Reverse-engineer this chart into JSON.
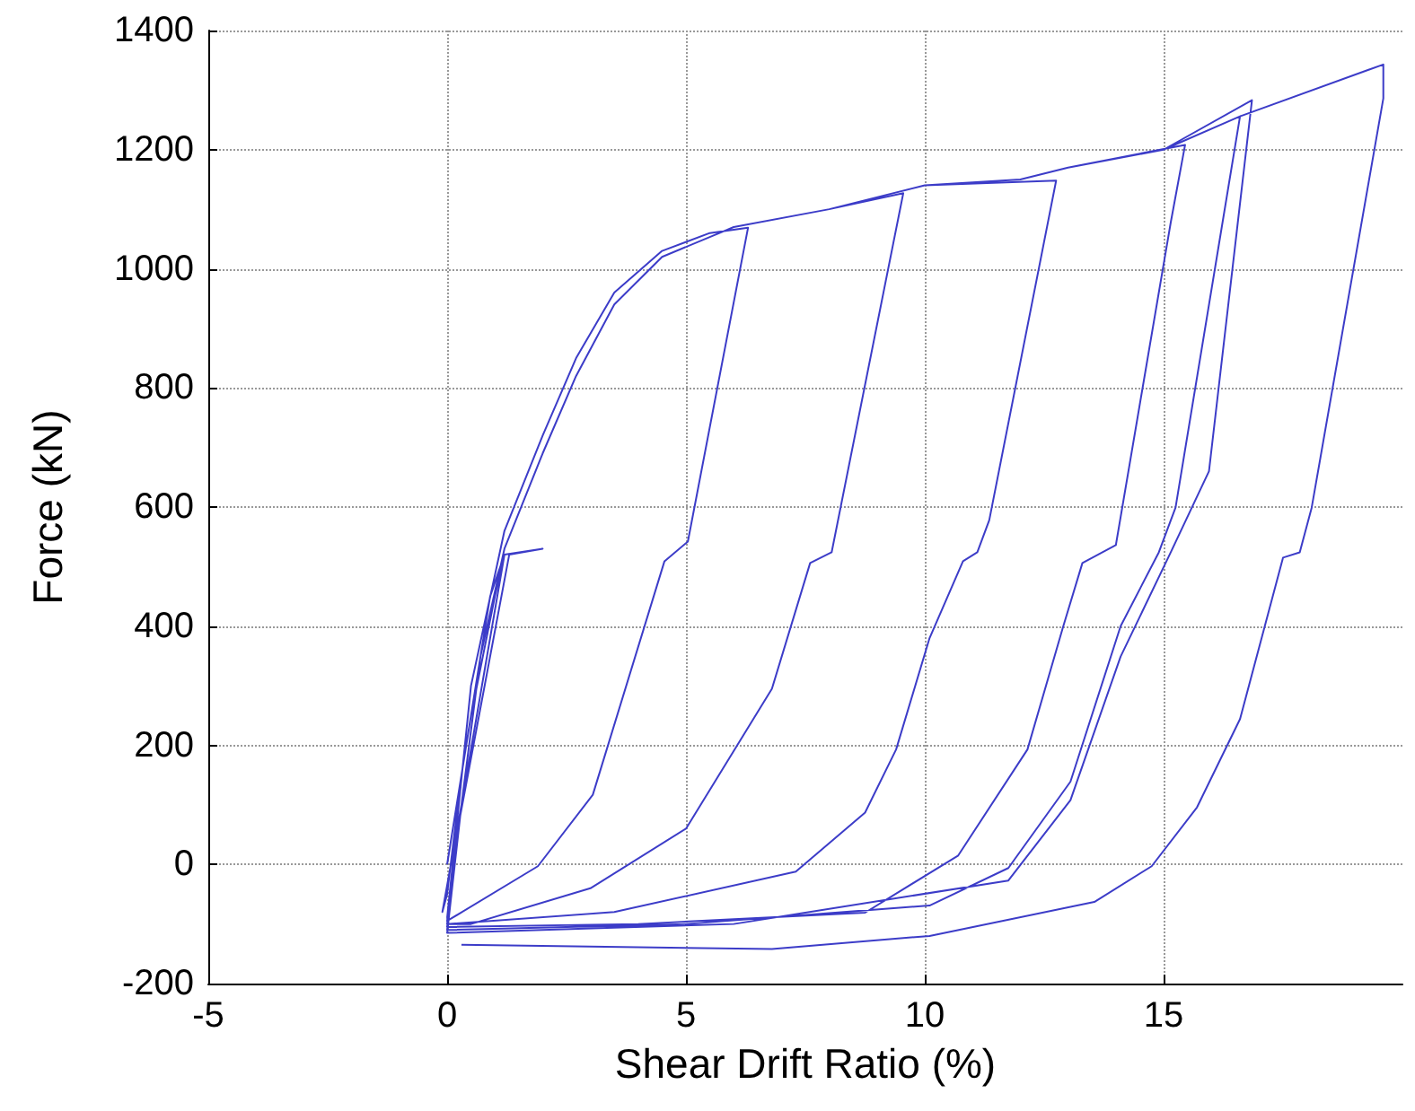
{
  "chart_data": {
    "type": "line",
    "xlabel": "Shear Drift Ratio (%)",
    "ylabel": "Force (kN)",
    "xlim": [
      -5,
      20
    ],
    "xticks": [
      -5,
      0,
      5,
      10,
      15
    ],
    "ylim": [
      -200,
      1400
    ],
    "yticks": [
      -200,
      0,
      200,
      400,
      600,
      800,
      1000,
      1200,
      1400
    ],
    "grid": true,
    "marker": "none",
    "line_style": "solid",
    "series": [
      {
        "color": "#3c3cc8",
        "x": [
          0,
          0.5,
          1.0,
          1.2,
          0.9,
          0.3,
          0,
          -0.1,
          0.3,
          1.2,
          2.0,
          1.3,
          0.2,
          0,
          0.5,
          1.2,
          2.0,
          2.7,
          3.5,
          4.5,
          5.5,
          6.3,
          5.04,
          4.55,
          3.05,
          1.9,
          0.04,
          0,
          0.3,
          0.7,
          1.2,
          2.0,
          2.7,
          3.5,
          4.5,
          6.0,
          8.0,
          9.55,
          8.05,
          7.6,
          6.8,
          5.0,
          3.0,
          0.5,
          0,
          0.3,
          0.7,
          1.2,
          2.0,
          2.7,
          3.5,
          4.5,
          6.0,
          8.0,
          10.0,
          12.75,
          11.35,
          11.1,
          10.8,
          10.1,
          9.4,
          8.75,
          7.3,
          3.5,
          0,
          0.3,
          0.7,
          1.2,
          2.0,
          2.7,
          3.5,
          4.5,
          6.0,
          8.0,
          10.0,
          12.0,
          13.0,
          15.45,
          15.15,
          14.0,
          13.3,
          12.9,
          12.15,
          10.7,
          8.75,
          4.0,
          0,
          0.3,
          0.7,
          1.2,
          2.0,
          2.7,
          3.5,
          4.5,
          6.0,
          8.0,
          10.0,
          12.0,
          13.0,
          15.0,
          16.6,
          15.25,
          14.9,
          14.1,
          13.05,
          11.75,
          10.1,
          5.0,
          0,
          0.3,
          0.7,
          1.2,
          2.0,
          2.7,
          3.5,
          4.5,
          6.0,
          8.0,
          10.0,
          12.0,
          13.0,
          15.0,
          16.85,
          15.95,
          15.15,
          14.1,
          13.05,
          11.75,
          6.0,
          0,
          0.3,
          0.7,
          1.2,
          2.0,
          2.7,
          3.5,
          4.5,
          6.0,
          8.0,
          10.0,
          12.0,
          13.0,
          15.0,
          16.6,
          19.6,
          19.6,
          18.1,
          17.85,
          17.5,
          16.6,
          15.7,
          14.75,
          13.55,
          10.1,
          6.8,
          0.3
        ],
        "values": [
          0,
          250,
          450,
          520,
          450,
          150,
          -50,
          -80,
          100,
          520,
          530,
          520,
          50,
          -90,
          300,
          560,
          720,
          850,
          960,
          1030,
          1060,
          1069,
          542,
          509,
          117,
          -3,
          -93,
          -95,
          100,
          350,
          530,
          690,
          820,
          940,
          1020,
          1070,
          1100,
          1127,
          524,
          506,
          295,
          60,
          -40,
          -100,
          -100,
          100,
          350,
          530,
          690,
          820,
          940,
          1020,
          1070,
          1100,
          1140,
          1148,
          578,
          524,
          509,
          380,
          193,
          87,
          -12,
          -80,
          -100,
          100,
          350,
          530,
          690,
          820,
          940,
          1020,
          1070,
          1100,
          1140,
          1150,
          1170,
          1208,
          1078,
          536,
          506,
          400,
          193,
          15,
          -81,
          -100,
          -105,
          100,
          350,
          530,
          690,
          820,
          940,
          1020,
          1070,
          1100,
          1140,
          1150,
          1170,
          1200,
          1256,
          599,
          524,
          400,
          139,
          -6,
          -69,
          -100,
          -110,
          100,
          350,
          530,
          690,
          820,
          940,
          1020,
          1070,
          1100,
          1140,
          1150,
          1170,
          1200,
          1283,
          660,
          524,
          349,
          108,
          -27,
          -100,
          -115,
          100,
          350,
          530,
          690,
          820,
          940,
          1020,
          1070,
          1100,
          1140,
          1150,
          1170,
          1200,
          1256,
          1343,
          1286,
          599,
          524,
          515,
          244,
          96,
          -3,
          -63,
          -120,
          -142,
          -135
        ]
      }
    ]
  }
}
